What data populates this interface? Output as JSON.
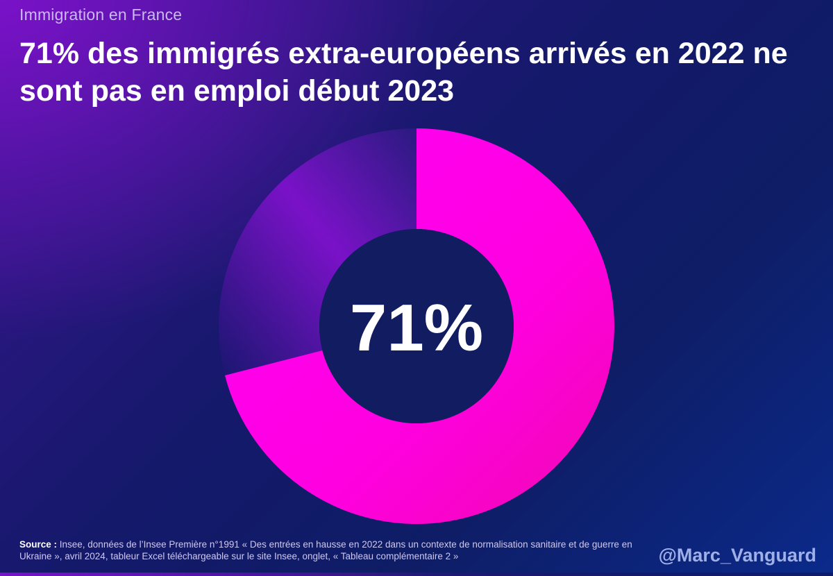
{
  "header": {
    "kicker": "Immigration en France",
    "headline": "71% des immigrés extra-européens arrivés en 2022 ne sont pas en emploi début 2023"
  },
  "chart_data": {
    "type": "pie",
    "variant": "donut",
    "slices": [
      {
        "label": "",
        "value": 71,
        "color": "#ff00ee"
      },
      {
        "label": "",
        "value": 29,
        "color": "#7a14c8"
      }
    ],
    "center_label": "71%"
  },
  "footer": {
    "source_label": "Source :",
    "source_text": " Insee, données de l’Insee Première n°1991 « Des entrées en hausse en 2022 dans un contexte de normalisation sanitaire et de guerre en Ukraine », avril 2024, tableur Excel téléchargeable sur le site Insee, onglet, « Tableau complémentaire 2 »",
    "handle": "@Marc_Vanguard"
  }
}
